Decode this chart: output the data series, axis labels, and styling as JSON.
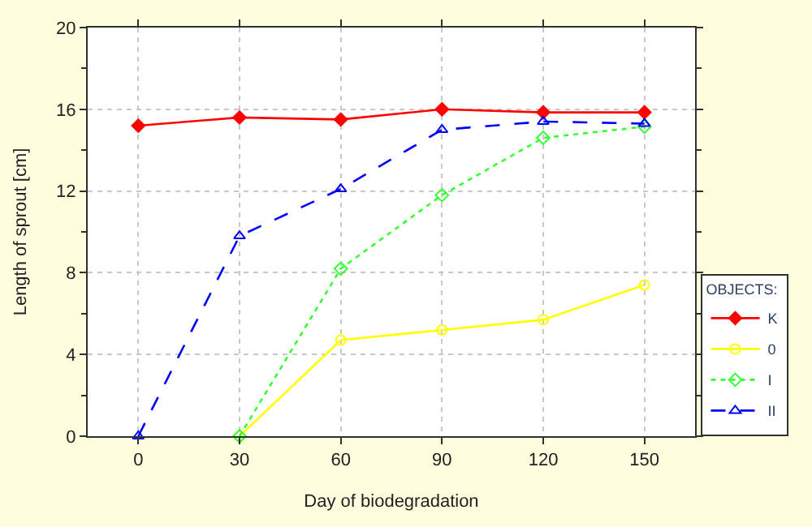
{
  "chart_data": {
    "type": "line",
    "xlabel": "Day of biodegradation",
    "ylabel": "Length of sprout [cm]",
    "legend_title": "OBJECTS:",
    "x": [
      0,
      30,
      60,
      90,
      120,
      150
    ],
    "xlim": [
      -15,
      165
    ],
    "xticks": [
      0,
      30,
      60,
      90,
      120,
      150
    ],
    "ylim": [
      0,
      20
    ],
    "yticks": [
      0,
      4,
      8,
      12,
      16,
      20
    ],
    "grid": true,
    "legend": "bottom right",
    "series": [
      {
        "name": "K",
        "color": "#ff0000",
        "marker": "diamond",
        "line_style": "solid",
        "values": [
          15.2,
          15.6,
          15.5,
          16.0,
          15.85,
          15.85
        ]
      },
      {
        "name": "0",
        "color": "#ffff00",
        "marker": "circle",
        "line_style": "solid",
        "values": [
          null,
          0,
          4.7,
          5.2,
          5.7,
          7.4
        ]
      },
      {
        "name": "I",
        "color": "#33ff33",
        "marker": "diamond",
        "line_style": "dotted",
        "values": [
          null,
          0,
          8.2,
          11.8,
          14.6,
          15.15
        ]
      },
      {
        "name": "II",
        "color": "#0000ff",
        "marker": "triangle",
        "line_style": "dashed",
        "values": [
          0,
          9.8,
          12.1,
          15.0,
          15.4,
          15.3
        ]
      }
    ]
  }
}
